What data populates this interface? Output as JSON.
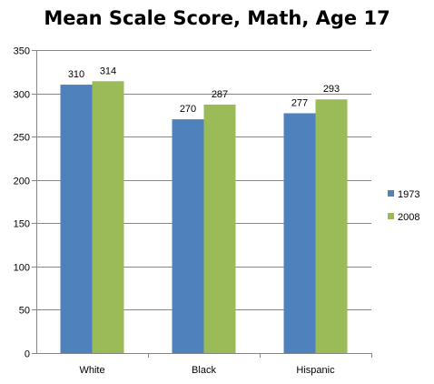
{
  "chart_data": {
    "type": "bar",
    "title": "Mean Scale Score, Math, Age 17",
    "categories": [
      "White",
      "Black",
      "Hispanic"
    ],
    "series": [
      {
        "name": "1973",
        "values": [
          310,
          270,
          277
        ],
        "color": "#4f81bd"
      },
      {
        "name": "2008",
        "values": [
          314,
          287,
          293
        ],
        "color": "#9bbb59"
      }
    ],
    "ylim": [
      0,
      350
    ],
    "yticks": [
      0,
      50,
      100,
      150,
      200,
      250,
      300,
      350
    ],
    "grid": true,
    "legend": "right",
    "data_labels": true
  }
}
